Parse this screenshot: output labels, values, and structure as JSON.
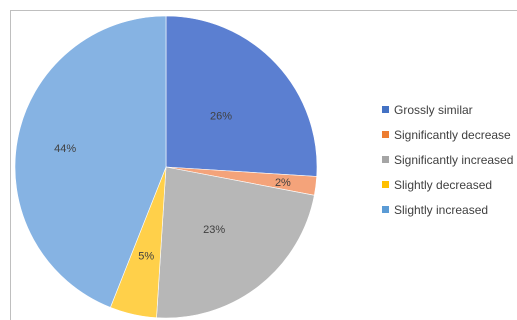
{
  "chart_data": {
    "type": "pie",
    "title": "",
    "start": "12 o'clock, clockwise",
    "slices": [
      {
        "label": "Grossly similar",
        "value": 26,
        "display": "26%",
        "color": "#5b7fd1",
        "legend_color": "#4472c4"
      },
      {
        "label": "Significantly decrease",
        "value": 2,
        "display": "2%",
        "color": "#f4a37a",
        "legend_color": "#ed7d31"
      },
      {
        "label": "Significantly increased",
        "value": 23,
        "display": "23%",
        "color": "#b7b7b7",
        "legend_color": "#a5a5a5"
      },
      {
        "label": "Slightly decreased",
        "value": 5,
        "display": "5%",
        "color": "#ffd04a",
        "legend_color": "#ffc000"
      },
      {
        "label": "Slightly increased",
        "value": 44,
        "display": "44%",
        "color": "#86b3e3",
        "legend_color": "#5b9bd5"
      }
    ],
    "legend": {
      "placement": "right",
      "items": [
        "Grossly similar",
        "Significantly decrease",
        "Significantly increased",
        "Slightly decreased",
        "Slightly increased"
      ]
    }
  }
}
